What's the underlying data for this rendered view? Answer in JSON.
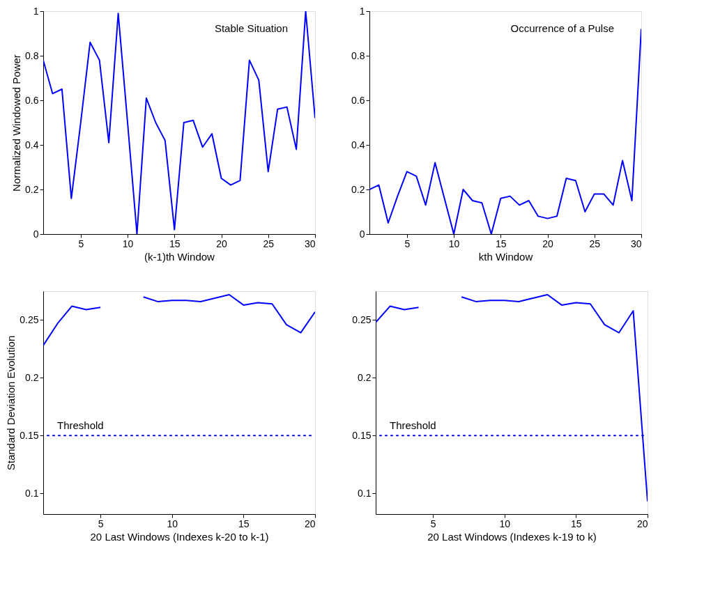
{
  "chart_data": [
    {
      "type": "line",
      "ylabel": "Normalized Windowed Power",
      "xlabel": "(k-1)th Window",
      "annotations": [
        "Stable Situation"
      ],
      "x": [
        1,
        2,
        3,
        4,
        5,
        6,
        7,
        8,
        9,
        10,
        11,
        12,
        13,
        14,
        15,
        16,
        17,
        18,
        19,
        20,
        21,
        22,
        23,
        24,
        25,
        26,
        27,
        28,
        29,
        30
      ],
      "series": [
        {
          "color": "#0000ff",
          "values": [
            0.78,
            0.63,
            0.65,
            0.16,
            0.5,
            0.86,
            0.78,
            0.41,
            0.99,
            0.5,
            0.0,
            0.61,
            0.5,
            0.42,
            0.02,
            0.5,
            0.51,
            0.39,
            0.45,
            0.25,
            0.22,
            0.24,
            0.78,
            0.69,
            0.28,
            0.56,
            0.57,
            0.38,
            1.0,
            0.52
          ]
        }
      ],
      "xlim": [
        1,
        30
      ],
      "xticks": [
        5,
        10,
        15,
        20,
        25,
        30
      ],
      "ylim": [
        0,
        1
      ],
      "yticks": [
        0,
        0.2,
        0.4,
        0.6,
        0.8,
        1
      ],
      "grid": false,
      "line_style": "solid",
      "marker": "none"
    },
    {
      "type": "line",
      "xlabel": "kth Window",
      "annotations": [
        "Occurrence of a Pulse"
      ],
      "x": [
        1,
        2,
        3,
        4,
        5,
        6,
        7,
        8,
        9,
        10,
        11,
        12,
        13,
        14,
        15,
        16,
        17,
        18,
        19,
        20,
        21,
        22,
        23,
        24,
        25,
        26,
        27,
        28,
        29,
        30
      ],
      "series": [
        {
          "color": "#0000ff",
          "values": [
            0.2,
            0.22,
            0.05,
            0.17,
            0.28,
            0.26,
            0.13,
            0.32,
            0.16,
            0.0,
            0.2,
            0.15,
            0.14,
            0.0,
            0.16,
            0.17,
            0.13,
            0.15,
            0.08,
            0.07,
            0.08,
            0.25,
            0.24,
            0.1,
            0.18,
            0.18,
            0.13,
            0.33,
            0.15,
            0.92
          ]
        }
      ],
      "xlim": [
        1,
        30
      ],
      "xticks": [
        5,
        10,
        15,
        20,
        25,
        30
      ],
      "ylim": [
        0,
        1
      ],
      "yticks": [
        0,
        0.2,
        0.4,
        0.6,
        0.8,
        1
      ],
      "grid": false,
      "line_style": "solid",
      "marker": "none"
    },
    {
      "type": "line",
      "ylabel": "Standard Deviation Evolution",
      "xlabel": "20 Last Windows (Indexes k-20 to k-1)",
      "x": [
        1,
        2,
        3,
        4,
        5,
        6,
        7,
        8,
        9,
        10,
        11,
        12,
        13,
        14,
        15,
        16,
        17,
        18,
        19,
        20
      ],
      "series": [
        {
          "color": "#0000ff",
          "values": [
            0.228,
            0.247,
            0.262,
            0.259,
            0.261,
            null,
            null,
            0.27,
            0.266,
            0.267,
            0.267,
            0.266,
            0.269,
            0.272,
            0.263,
            0.265,
            0.264,
            0.246,
            0.239,
            0.257
          ]
        }
      ],
      "ref_lines": [
        {
          "axis": "y",
          "value": 0.15,
          "label": "Threshold",
          "color": "#0000ff",
          "line_style": "dotted"
        }
      ],
      "xlim": [
        1,
        20
      ],
      "xticks": [
        5,
        10,
        15,
        20
      ],
      "ylim": [
        0.082,
        0.275
      ],
      "yticks": [
        0.1,
        0.15,
        0.2,
        0.25
      ],
      "grid": false,
      "line_style": "solid",
      "marker": "none"
    },
    {
      "type": "line",
      "xlabel": "20 Last Windows (Indexes k-19 to k)",
      "x": [
        1,
        2,
        3,
        4,
        5,
        6,
        7,
        8,
        9,
        10,
        11,
        12,
        13,
        14,
        15,
        16,
        17,
        18,
        19,
        20
      ],
      "series": [
        {
          "color": "#0000ff",
          "values": [
            0.248,
            0.262,
            0.259,
            0.261,
            null,
            null,
            0.27,
            0.266,
            0.267,
            0.267,
            0.266,
            0.269,
            0.272,
            0.263,
            0.265,
            0.264,
            0.246,
            0.239,
            0.258,
            0.093
          ]
        }
      ],
      "ref_lines": [
        {
          "axis": "y",
          "value": 0.15,
          "label": "Threshold",
          "color": "#0000ff",
          "line_style": "dotted"
        }
      ],
      "xlim": [
        1,
        20
      ],
      "xticks": [
        5,
        10,
        15,
        20
      ],
      "ylim": [
        0.082,
        0.275
      ],
      "yticks": [
        0.1,
        0.15,
        0.2,
        0.25
      ],
      "grid": false,
      "line_style": "solid",
      "marker": "none"
    }
  ]
}
